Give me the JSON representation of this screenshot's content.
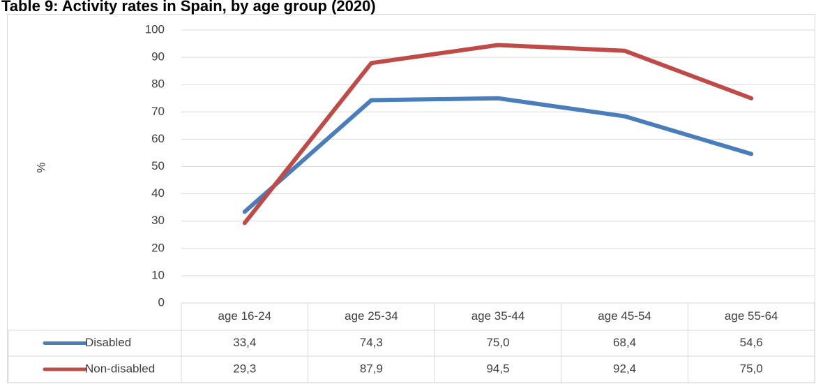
{
  "chart_data": {
    "type": "line",
    "title": "Table 9: Activity rates in Spain, by age group (2020)",
    "ylabel": "%",
    "categories": [
      "age 16-24",
      "age 25-34",
      "age 35-44",
      "age 45-54",
      "age 55-64"
    ],
    "series": [
      {
        "name": "Disabled",
        "color": "#4a7ebb",
        "values": [
          33.4,
          74.3,
          75.0,
          68.4,
          54.6
        ],
        "value_labels": [
          "33,4",
          "74,3",
          "75,0",
          "68,4",
          "54,6"
        ]
      },
      {
        "name": "Non-disabled",
        "color": "#be4b48",
        "values": [
          29.3,
          87.9,
          94.5,
          92.4,
          75.0
        ],
        "value_labels": [
          "29,3",
          "87,9",
          "94,5",
          "92,4",
          "75,0"
        ]
      }
    ],
    "ylim": [
      0,
      100
    ],
    "yticks": [
      0,
      10,
      20,
      30,
      40,
      50,
      60,
      70,
      80,
      90,
      100
    ],
    "grid": true
  }
}
